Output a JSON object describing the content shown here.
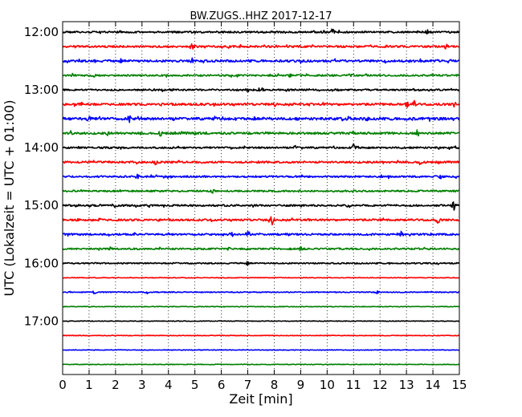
{
  "chart_data": {
    "type": "line",
    "title": "BW.ZUGS..HHZ 2017-12-17",
    "xlabel": "Zeit  [min]",
    "ylabel": "UTC (Lokalzeit = UTC + 01:00)",
    "xlim": [
      0,
      15
    ],
    "x_ticks": [
      0,
      1,
      2,
      3,
      4,
      5,
      6,
      7,
      8,
      9,
      10,
      11,
      12,
      13,
      14,
      15
    ],
    "y_tick_labels": [
      "12:00",
      "13:00",
      "14:00",
      "15:00",
      "16:00",
      "17:00"
    ],
    "y_tick_minutes": [
      720,
      780,
      840,
      900,
      960,
      1020
    ],
    "row_interval_min": 15,
    "grid": "x-dotted",
    "series_colors": [
      "#000000",
      "#ff0000",
      "#0000ff",
      "#008000"
    ],
    "rows": [
      {
        "start": "12:00",
        "activity": 0.55,
        "events": [
          [
            10.2,
            5
          ],
          [
            13.8,
            4
          ]
        ]
      },
      {
        "start": "12:15",
        "activity": 0.6,
        "events": [
          [
            4.9,
            6
          ],
          [
            14.5,
            4
          ]
        ]
      },
      {
        "start": "12:30",
        "activity": 0.7,
        "events": [
          [
            1.2,
            3
          ],
          [
            2.2,
            3
          ],
          [
            4.9,
            4
          ],
          [
            10.3,
            3
          ]
        ]
      },
      {
        "start": "12:45",
        "activity": 0.5,
        "events": [
          [
            0.4,
            3
          ],
          [
            1.2,
            3
          ],
          [
            8.6,
            3
          ],
          [
            10.9,
            4
          ]
        ]
      },
      {
        "start": "13:00",
        "activity": 0.5,
        "events": [
          [
            7.0,
            3
          ],
          [
            7.5,
            5
          ],
          [
            8.5,
            3
          ]
        ]
      },
      {
        "start": "13:15",
        "activity": 0.7,
        "events": [
          [
            8.0,
            4
          ],
          [
            13.0,
            5
          ],
          [
            13.3,
            5
          ],
          [
            14.8,
            4
          ]
        ]
      },
      {
        "start": "13:30",
        "activity": 0.9,
        "events": [
          [
            0.1,
            3
          ],
          [
            1.0,
            6
          ],
          [
            2.5,
            6
          ],
          [
            6.6,
            3
          ],
          [
            11.5,
            3
          ]
        ]
      },
      {
        "start": "13:45",
        "activity": 0.7,
        "events": [
          [
            0.3,
            4
          ],
          [
            1.7,
            4
          ],
          [
            3.7,
            4
          ],
          [
            13.4,
            5
          ]
        ]
      },
      {
        "start": "14:00",
        "activity": 0.5,
        "events": [
          [
            0.6,
            3
          ],
          [
            8.8,
            3
          ],
          [
            11.0,
            7
          ]
        ]
      },
      {
        "start": "14:15",
        "activity": 0.6,
        "events": [
          [
            3.5,
            4
          ],
          [
            13.5,
            5
          ]
        ]
      },
      {
        "start": "14:30",
        "activity": 0.5,
        "events": [
          [
            2.8,
            4
          ],
          [
            12.3,
            3
          ],
          [
            14.3,
            3
          ]
        ]
      },
      {
        "start": "14:45",
        "activity": 0.45,
        "events": [
          [
            5.7,
            4
          ],
          [
            9.0,
            3
          ]
        ]
      },
      {
        "start": "15:00",
        "activity": 0.55,
        "events": [
          [
            2.0,
            3
          ],
          [
            10.8,
            4
          ],
          [
            14.8,
            6
          ]
        ]
      },
      {
        "start": "15:15",
        "activity": 0.6,
        "events": [
          [
            1.4,
            3
          ],
          [
            7.9,
            9
          ],
          [
            14.2,
            5
          ]
        ]
      },
      {
        "start": "15:30",
        "activity": 0.55,
        "events": [
          [
            6.4,
            4
          ],
          [
            7.0,
            5
          ],
          [
            8.5,
            3
          ],
          [
            12.8,
            4
          ]
        ]
      },
      {
        "start": "15:45",
        "activity": 0.45,
        "events": [
          [
            1.8,
            3
          ],
          [
            6.3,
            3
          ],
          [
            9.0,
            3
          ]
        ]
      },
      {
        "start": "16:00",
        "activity": 0.3,
        "events": [
          [
            7.0,
            3
          ]
        ]
      },
      {
        "start": "16:15",
        "activity": 0.0,
        "events": []
      },
      {
        "start": "16:30",
        "activity": 0.15,
        "events": [
          [
            1.2,
            3
          ],
          [
            3.2,
            2
          ],
          [
            11.9,
            3
          ]
        ]
      },
      {
        "start": "16:45",
        "activity": 0.0,
        "events": []
      },
      {
        "start": "17:00",
        "activity": 0.0,
        "events": []
      },
      {
        "start": "17:15",
        "activity": 0.0,
        "events": []
      },
      {
        "start": "17:30",
        "activity": 0.0,
        "events": []
      },
      {
        "start": "17:45",
        "activity": 0.0,
        "events": []
      }
    ]
  }
}
